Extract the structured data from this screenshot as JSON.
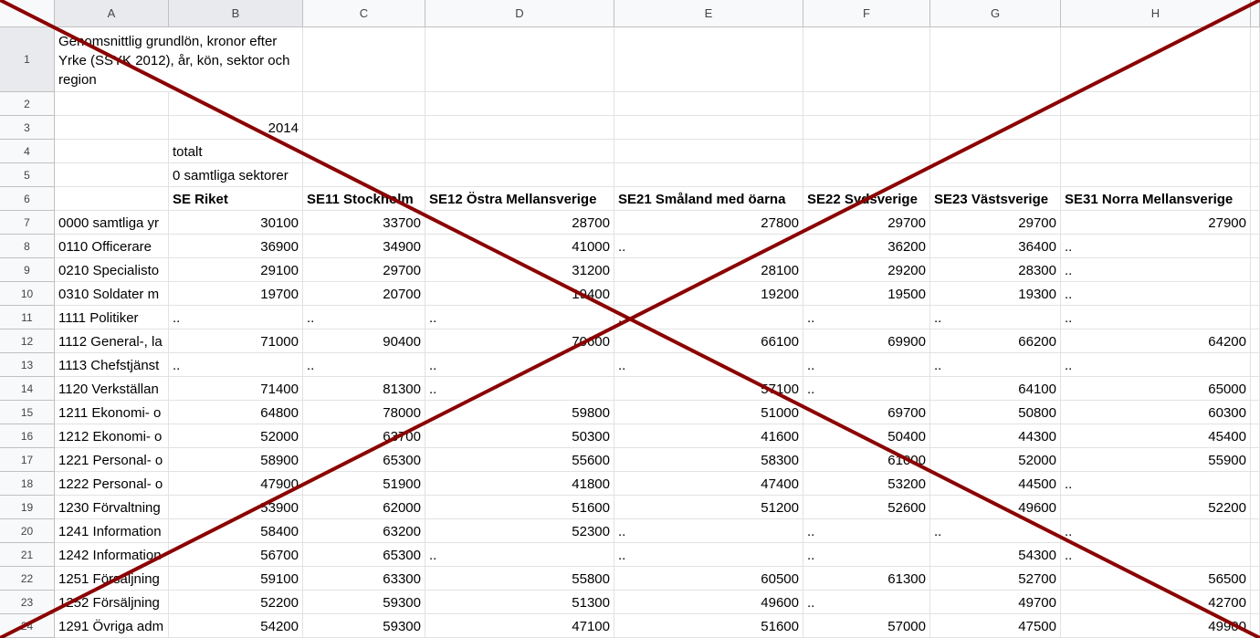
{
  "columns": [
    "A",
    "B",
    "C",
    "D",
    "E",
    "F",
    "G",
    "H"
  ],
  "rows": [
    {
      "number": 1,
      "cells": [
        "Genomsnittlig grundlön, kronor efter Yrke (SSYK 2012), år, kön, sektor och region",
        null,
        null,
        null,
        null,
        null,
        null,
        null
      ]
    },
    {
      "number": 2,
      "cells": [
        null,
        null,
        null,
        null,
        null,
        null,
        null,
        null
      ]
    },
    {
      "number": 3,
      "cells": [
        null,
        2014,
        null,
        null,
        null,
        null,
        null,
        null
      ]
    },
    {
      "number": 4,
      "cells": [
        null,
        "totalt",
        null,
        null,
        null,
        null,
        null,
        null
      ]
    },
    {
      "number": 5,
      "cells": [
        null,
        "0 samtliga sektorer",
        null,
        null,
        null,
        null,
        null,
        null
      ]
    },
    {
      "number": 6,
      "bold": true,
      "cells": [
        null,
        "SE Riket",
        "SE11 Stockholm",
        "SE12 Östra Mellansverige",
        "SE21 Småland med öarna",
        "SE22 Sydsverige",
        "SE23 Västsverige",
        "SE31 Norra Mellansverige"
      ]
    },
    {
      "number": 7,
      "cells": [
        "0000 samtliga yr",
        30100,
        33700,
        28700,
        27800,
        29700,
        29700,
        27900
      ]
    },
    {
      "number": 8,
      "cells": [
        "0110 Officerare",
        36900,
        34900,
        41000,
        "..",
        36200,
        36400,
        ".."
      ]
    },
    {
      "number": 9,
      "cells": [
        "0210 Specialisto",
        29100,
        29700,
        31200,
        28100,
        29200,
        28300,
        ".."
      ]
    },
    {
      "number": 10,
      "cells": [
        "0310 Soldater m",
        19700,
        20700,
        19400,
        19200,
        19500,
        19300,
        ".."
      ]
    },
    {
      "number": 11,
      "cells": [
        "1111 Politiker",
        "..",
        "..",
        "..",
        "..",
        "..",
        "..",
        ".."
      ]
    },
    {
      "number": 12,
      "cells": [
        "1112 General-, la",
        71000,
        90400,
        70600,
        66100,
        69900,
        66200,
        64200
      ]
    },
    {
      "number": 13,
      "cells": [
        "1113 Chefstjänst",
        "..",
        "..",
        "..",
        "..",
        "..",
        "..",
        ".."
      ]
    },
    {
      "number": 14,
      "cells": [
        "1120 Verkställan",
        71400,
        81300,
        "..",
        57100,
        "..",
        64100,
        65000
      ]
    },
    {
      "number": 15,
      "cells": [
        "1211 Ekonomi- o",
        64800,
        78000,
        59800,
        51000,
        69700,
        50800,
        60300
      ]
    },
    {
      "number": 16,
      "cells": [
        "1212 Ekonomi- o",
        52000,
        63700,
        50300,
        41600,
        50400,
        44300,
        45400
      ]
    },
    {
      "number": 17,
      "cells": [
        "1221 Personal- o",
        58900,
        65300,
        55600,
        58300,
        61000,
        52000,
        55900
      ]
    },
    {
      "number": 18,
      "cells": [
        "1222 Personal- o",
        47900,
        51900,
        41800,
        47400,
        53200,
        44500,
        ".."
      ]
    },
    {
      "number": 19,
      "cells": [
        "1230 Förvaltning",
        53900,
        62000,
        51600,
        51200,
        52600,
        49600,
        52200
      ]
    },
    {
      "number": 20,
      "cells": [
        "1241 Information",
        58400,
        63200,
        52300,
        "..",
        "..",
        "..",
        ".."
      ]
    },
    {
      "number": 21,
      "cells": [
        "1242 Information",
        56700,
        65300,
        "..",
        "..",
        "..",
        54300,
        ".."
      ]
    },
    {
      "number": 22,
      "cells": [
        "1251 Försäljning",
        59100,
        63300,
        55800,
        60500,
        61300,
        52700,
        56500
      ]
    },
    {
      "number": 23,
      "cells": [
        "1252 Försäljning",
        52200,
        59300,
        51300,
        49600,
        "..",
        49700,
        42700
      ]
    },
    {
      "number": 24,
      "cells": [
        "1291 Övriga adm",
        54200,
        59300,
        47100,
        51600,
        57000,
        47500,
        49900
      ]
    }
  ]
}
